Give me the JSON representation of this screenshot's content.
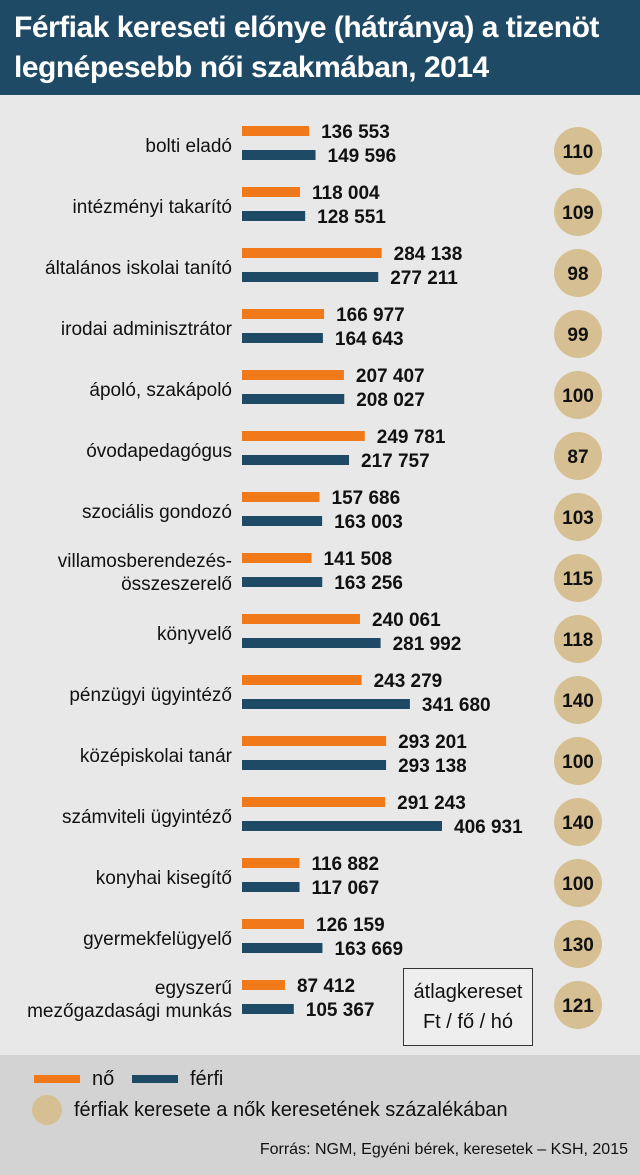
{
  "title_lines": [
    "Férfiak kereseti előnye (hátránya) a tizenöt",
    "legnépesebb női szakmában, 2014"
  ],
  "colors": {
    "female": "#f07a1a",
    "male": "#1f4a66",
    "ratio_circle": "#d6bf93",
    "header_bg": "#1f4a66"
  },
  "chart_data": {
    "type": "bar",
    "orientation": "horizontal",
    "title": "Férfiak kereseti előnye (hátránya) a tizenöt legnépesebb női szakmában, 2014",
    "unit": "Ft / fő / hó",
    "categories": [
      [
        "bolti eladó"
      ],
      [
        "intézményi takarító"
      ],
      [
        "általános iskolai tanító"
      ],
      [
        "irodai adminisztrátor"
      ],
      [
        "ápoló, szakápoló"
      ],
      [
        "óvodapedagógus"
      ],
      [
        "szociális gondozó"
      ],
      [
        "villamosberendezés-",
        "összeszerelő"
      ],
      [
        "könyvelő"
      ],
      [
        "pénzügyi ügyintéző"
      ],
      [
        "középiskolai tanár"
      ],
      [
        "számviteli ügyintéző"
      ],
      [
        "konyhai kisegítő"
      ],
      [
        "gyermekfelügyelő"
      ],
      [
        "egyszerű",
        "mezőgazdasági munkás"
      ]
    ],
    "series": [
      {
        "name": "nő",
        "values": [
          136553,
          118004,
          284138,
          166977,
          207407,
          249781,
          157686,
          141508,
          240061,
          243279,
          293201,
          291243,
          116882,
          126159,
          87412
        ],
        "labels": [
          "136 553",
          "118 004",
          "284 138",
          "166 977",
          "207 407",
          "249 781",
          "157 686",
          "141 508",
          "240 061",
          "243 279",
          "293 201",
          "291 243",
          "116 882",
          "126 159",
          "87 412"
        ]
      },
      {
        "name": "férfi",
        "values": [
          149596,
          128551,
          277211,
          164643,
          208027,
          217757,
          163003,
          163256,
          281992,
          341680,
          293138,
          406931,
          117067,
          163669,
          105367
        ],
        "labels": [
          "149 596",
          "128 551",
          "277 211",
          "164 643",
          "208 027",
          "217 757",
          "163 003",
          "163 256",
          "281 992",
          "341 680",
          "293 138",
          "406 931",
          "117 067",
          "163 669",
          "105 367"
        ]
      }
    ],
    "ratio": {
      "name": "férfiak keresete a nők keresetének százalékában",
      "values": [
        110,
        109,
        98,
        99,
        100,
        87,
        103,
        115,
        118,
        140,
        100,
        140,
        100,
        130,
        121
      ]
    },
    "avg_box": [
      "átlagkereset",
      "Ft / fő / hó"
    ]
  },
  "legend": {
    "female_label": "nő",
    "male_label": "férfi",
    "ratio_label": "férfiak keresete a nők keresetének százalékában"
  },
  "source": "Forrás: NGM, Egyéni bérek, keresetek – KSH, 2015"
}
